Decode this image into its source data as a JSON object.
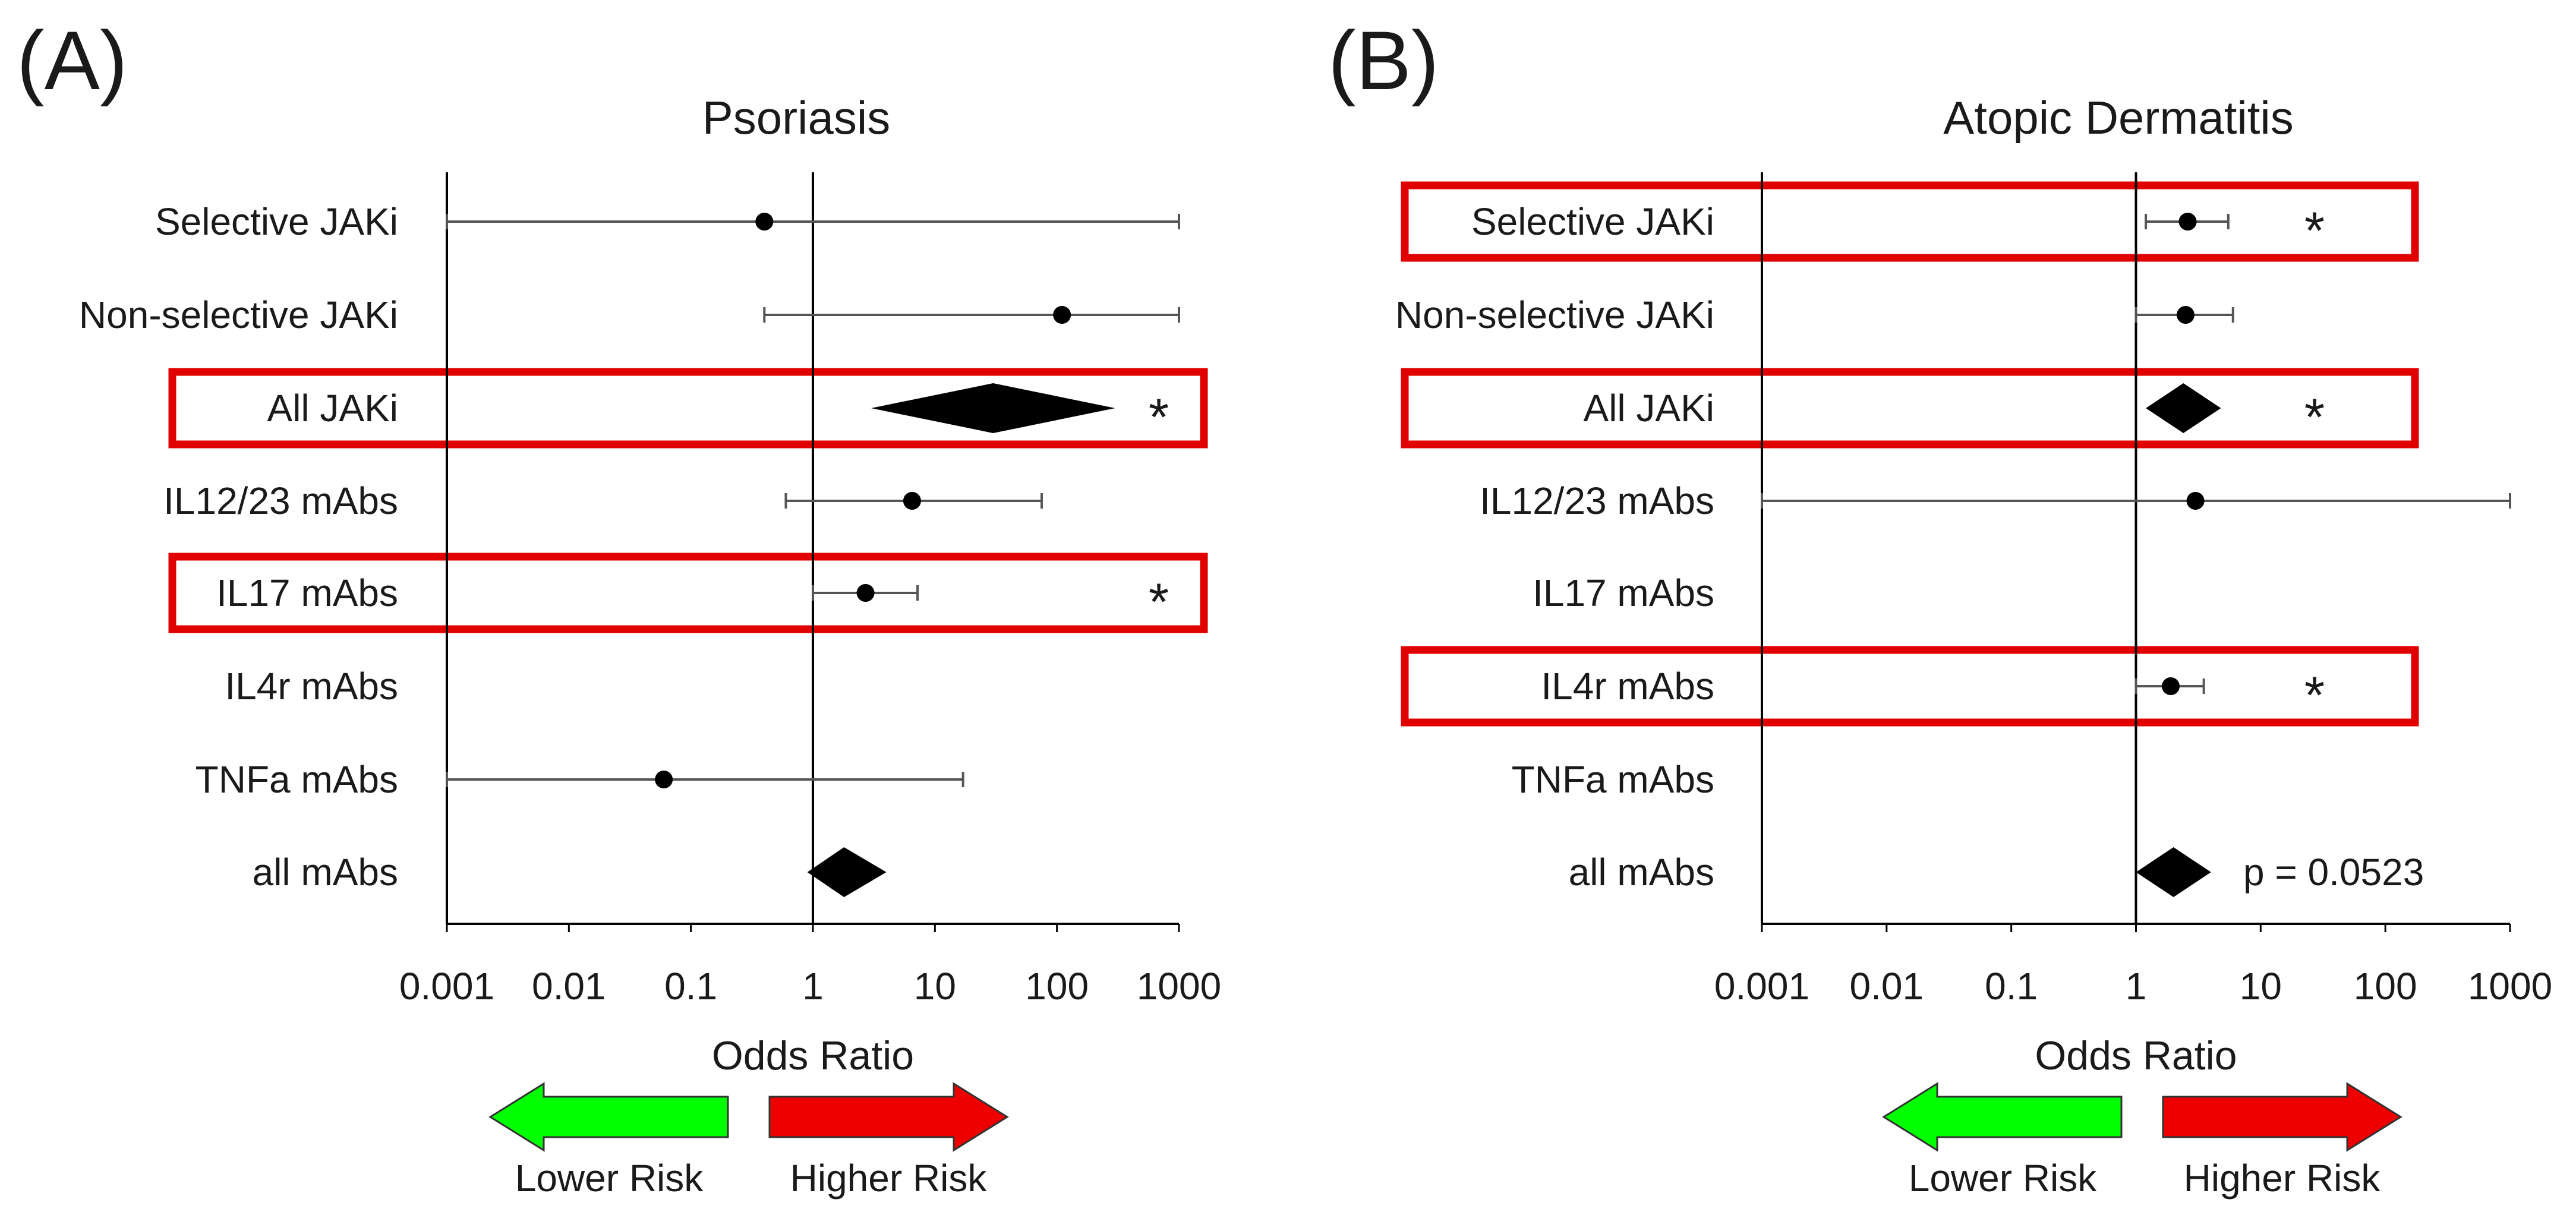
{
  "chart_data": [
    {
      "type": "forest",
      "panel_label": "(A)",
      "title": "Psoriasis",
      "xlabel": "Odds Ratio",
      "x_scale": "log10",
      "xlim": [
        0.001,
        1000
      ],
      "ticks": [
        0.001,
        0.01,
        0.1,
        1,
        10,
        100,
        1000
      ],
      "tick_labels": [
        "0.001",
        "0.01",
        "0.1",
        "1",
        "10",
        "100",
        "1000"
      ],
      "reference_line": 1,
      "legend": {
        "lower": "Lower Risk",
        "higher": "Higher Risk",
        "lower_color": "#00ff00",
        "higher_color": "#ee0000"
      },
      "rows": [
        {
          "label": "Selective JAKi",
          "kind": "point",
          "or": 0.4,
          "ci": [
            0.001,
            1000
          ],
          "significant": false,
          "highlight": false
        },
        {
          "label": "Non-selective JAKi",
          "kind": "point",
          "or": 110,
          "ci": [
            0.4,
            1000
          ],
          "significant": false,
          "highlight": false
        },
        {
          "label": "All JAKi",
          "kind": "diamond",
          "or": 30,
          "ci": [
            3,
            300
          ],
          "significant": true,
          "highlight": true
        },
        {
          "label": "IL12/23 mAbs",
          "kind": "point",
          "or": 6.5,
          "ci": [
            0.6,
            75
          ],
          "significant": false,
          "highlight": false
        },
        {
          "label": "IL17 mAbs",
          "kind": "point",
          "or": 2.7,
          "ci": [
            1.0,
            7.2
          ],
          "significant": true,
          "highlight": true
        },
        {
          "label": "IL4r mAbs",
          "kind": "none",
          "significant": false,
          "highlight": false
        },
        {
          "label": "TNFa mAbs",
          "kind": "point",
          "or": 0.06,
          "ci": [
            0.001,
            17
          ],
          "significant": false,
          "highlight": false
        },
        {
          "label": "all mAbs",
          "kind": "diamond",
          "or": 1.8,
          "ci": [
            0.9,
            4
          ],
          "significant": false,
          "highlight": false
        }
      ]
    },
    {
      "type": "forest",
      "panel_label": "(B)",
      "title": "Atopic Dermatitis",
      "xlabel": "Odds Ratio",
      "x_scale": "log10",
      "xlim": [
        0.001,
        1000
      ],
      "ticks": [
        0.001,
        0.01,
        0.1,
        1,
        10,
        100,
        1000
      ],
      "tick_labels": [
        "0.001",
        "0.01",
        "0.1",
        "1",
        "10",
        "100",
        "1000"
      ],
      "reference_line": 1,
      "legend": {
        "lower": "Lower Risk",
        "higher": "Higher Risk",
        "lower_color": "#00ff00",
        "higher_color": "#ee0000"
      },
      "annotation": "p = 0.0523",
      "rows": [
        {
          "label": "Selective JAKi",
          "kind": "point",
          "or": 2.6,
          "ci": [
            1.2,
            5.5
          ],
          "significant": true,
          "highlight": true
        },
        {
          "label": "Non-selective JAKi",
          "kind": "point",
          "or": 2.5,
          "ci": [
            1.0,
            6.0
          ],
          "significant": false,
          "highlight": false
        },
        {
          "label": "All JAKi",
          "kind": "diamond",
          "or": 2.4,
          "ci": [
            1.2,
            4.8
          ],
          "significant": true,
          "highlight": true
        },
        {
          "label": "IL12/23 mAbs",
          "kind": "point",
          "or": 3,
          "ci": [
            0.001,
            1000
          ],
          "significant": false,
          "highlight": false
        },
        {
          "label": "IL17 mAbs",
          "kind": "none",
          "significant": false,
          "highlight": false
        },
        {
          "label": "IL4r mAbs",
          "kind": "point",
          "or": 1.9,
          "ci": [
            1.0,
            3.5
          ],
          "significant": true,
          "highlight": true
        },
        {
          "label": "TNFa mAbs",
          "kind": "none",
          "significant": false,
          "highlight": false
        },
        {
          "label": "all mAbs",
          "kind": "diamond",
          "or": 2.0,
          "ci": [
            1.0,
            4.0
          ],
          "significant": false,
          "highlight": false
        }
      ]
    }
  ]
}
